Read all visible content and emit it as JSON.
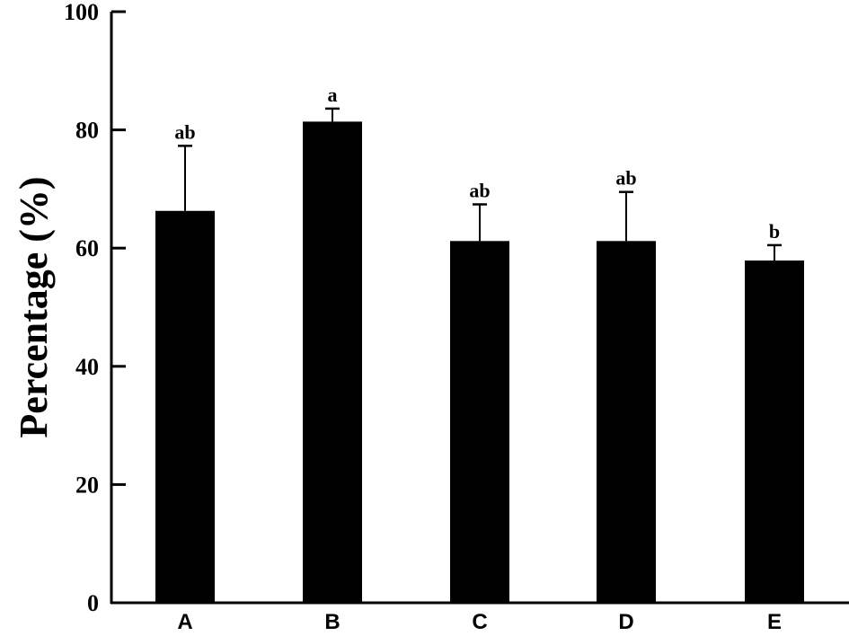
{
  "chart_data": {
    "type": "bar",
    "title": "",
    "xlabel": "",
    "ylabel": "Percentage (%)",
    "ylim": [
      0,
      100
    ],
    "yticks": [
      0,
      20,
      40,
      60,
      80,
      100
    ],
    "grid": false,
    "categories": [
      "A",
      "B",
      "C",
      "D",
      "E"
    ],
    "values": [
      66.3,
      81.4,
      61.2,
      61.2,
      57.9
    ],
    "error_upper": [
      77.3,
      83.6,
      67.4,
      69.5,
      60.5
    ],
    "significance_labels": [
      "ab",
      "a",
      "ab",
      "ab",
      "b"
    ],
    "bar_color": "#000000"
  }
}
